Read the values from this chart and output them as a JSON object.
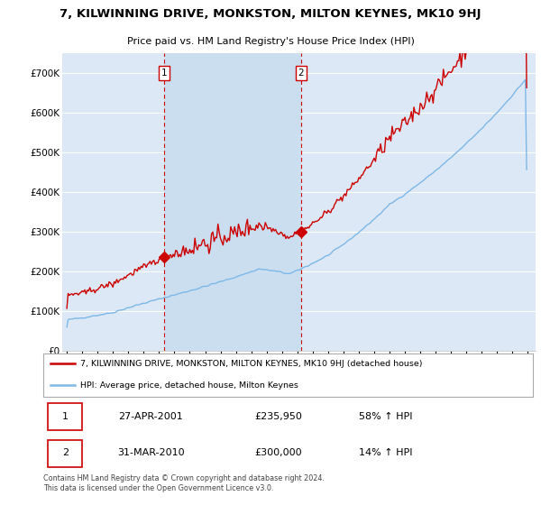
{
  "title": "7, KILWINNING DRIVE, MONKSTON, MILTON KEYNES, MK10 9HJ",
  "subtitle": "Price paid vs. HM Land Registry's House Price Index (HPI)",
  "ylim": [
    0,
    750000
  ],
  "yticks": [
    0,
    100000,
    200000,
    300000,
    400000,
    500000,
    600000,
    700000
  ],
  "ytick_labels": [
    "£0",
    "£100K",
    "£200K",
    "£300K",
    "£400K",
    "£500K",
    "£600K",
    "£700K"
  ],
  "background_color": "#ffffff",
  "plot_bg_color": "#dce8f5",
  "grid_color": "#ffffff",
  "red_line_color": "#cc0000",
  "blue_line_color": "#7db8e8",
  "vline_color": "#cc0000",
  "shade_color": "#c8ddf0",
  "sale1_year": 2001.33,
  "sale1_value": 235950,
  "sale2_year": 2010.25,
  "sale2_value": 300000,
  "legend_red_label": "7, KILWINNING DRIVE, MONKSTON, MILTON KEYNES, MK10 9HJ (detached house)",
  "legend_blue_label": "HPI: Average price, detached house, Milton Keynes",
  "annotation1_num": "1",
  "annotation1_date": "27-APR-2001",
  "annotation1_price": "£235,950",
  "annotation1_hpi": "58% ↑ HPI",
  "annotation2_num": "2",
  "annotation2_date": "31-MAR-2010",
  "annotation2_price": "£300,000",
  "annotation2_hpi": "14% ↑ HPI",
  "footer": "Contains HM Land Registry data © Crown copyright and database right 2024.\nThis data is licensed under the Open Government Licence v3.0."
}
